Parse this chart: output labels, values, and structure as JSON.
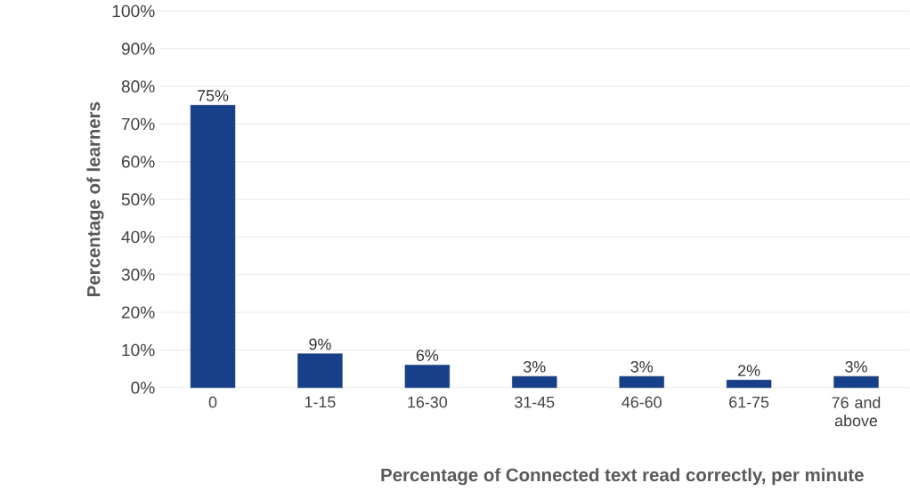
{
  "chart_data": {
    "type": "bar",
    "categories": [
      "0",
      "1-15",
      "16-30",
      "31-45",
      "46-60",
      "61-75",
      "76 and above"
    ],
    "values": [
      75,
      9,
      6,
      3,
      3,
      2,
      3
    ],
    "value_labels": [
      "75%",
      "9%",
      "6%",
      "3%",
      "3%",
      "2%",
      "3%"
    ],
    "color": "#17408b",
    "xlabel": "Percentage of Connected text read correctly, per minute",
    "ylabel": "Percentage of learners",
    "ylim": [
      0,
      100
    ],
    "yticks": [
      {
        "value": 0,
        "label": "0%"
      },
      {
        "value": 10,
        "label": "10%"
      },
      {
        "value": 20,
        "label": "20%"
      },
      {
        "value": 30,
        "label": "30%"
      },
      {
        "value": 40,
        "label": "40%"
      },
      {
        "value": 50,
        "label": "50%"
      },
      {
        "value": 60,
        "label": "60%"
      },
      {
        "value": 70,
        "label": "70%"
      },
      {
        "value": 80,
        "label": "80%"
      },
      {
        "value": 90,
        "label": "90%"
      },
      {
        "value": 100,
        "label": "100%"
      }
    ],
    "grid": "y"
  }
}
